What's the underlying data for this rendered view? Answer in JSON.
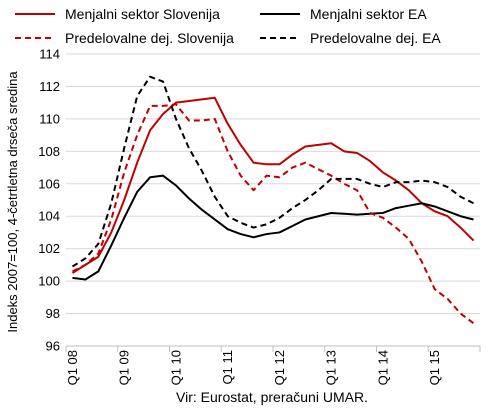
{
  "chart_data": {
    "type": "line",
    "ylabel": "Indeks 2007=100, 4-četrtletna drseča sredina",
    "source": "Vir: Eurostat, preračuni UMAR.",
    "ylim": [
      96,
      114
    ],
    "yticks": [
      "96",
      "98",
      "100",
      "102",
      "104",
      "106",
      "108",
      "110",
      "112",
      "114"
    ],
    "categories": [
      "Q1 08",
      "Q2 08",
      "Q3 08",
      "Q4 08",
      "Q1 09",
      "Q2 09",
      "Q3 09",
      "Q4 09",
      "Q1 10",
      "Q2 10",
      "Q3 10",
      "Q4 10",
      "Q1 11",
      "Q2 11",
      "Q3 11",
      "Q4 11",
      "Q1 12",
      "Q2 12",
      "Q3 12",
      "Q4 12",
      "Q1 13",
      "Q2 13",
      "Q3 13",
      "Q4 13",
      "Q1 14",
      "Q2 14",
      "Q3 14",
      "Q4 14",
      "Q1 15",
      "Q2 15",
      "Q3 15",
      "Q4 15"
    ],
    "xtick_labels": [
      "Q1 08",
      "Q1 09",
      "Q1 10",
      "Q1 11",
      "Q1 12",
      "Q1 13",
      "Q1 14",
      "Q1 15"
    ],
    "legend_placement": "top",
    "grid": "horizontal",
    "series": [
      {
        "name": "Menjalni sektor Slovenija",
        "color": "#c00000",
        "dash": "solid",
        "values": [
          100.5,
          101.0,
          101.5,
          103.0,
          105.0,
          107.3,
          109.3,
          110.3,
          111.0,
          111.1,
          111.2,
          111.3,
          109.7,
          108.4,
          107.3,
          107.2,
          107.2,
          107.8,
          108.3,
          108.4,
          108.5,
          108.0,
          107.9,
          107.4,
          106.7,
          106.2,
          105.6,
          104.8,
          104.3,
          104.0,
          103.3,
          102.5
        ]
      },
      {
        "name": "Menjalni sektor EA",
        "color": "#000000",
        "dash": "solid",
        "values": [
          100.2,
          100.1,
          100.6,
          102.2,
          103.9,
          105.5,
          106.4,
          106.5,
          105.9,
          105.1,
          104.4,
          103.8,
          103.2,
          102.9,
          102.7,
          102.9,
          103.0,
          103.4,
          103.8,
          104.0,
          104.2,
          104.15,
          104.1,
          104.15,
          104.2,
          104.5,
          104.65,
          104.8,
          104.6,
          104.3,
          104.0,
          103.8
        ]
      },
      {
        "name": "Predelovalne dej. Slovenija",
        "color": "#c00000",
        "dash": "dashed",
        "values": [
          100.6,
          101.0,
          101.7,
          103.8,
          106.7,
          109.0,
          110.8,
          110.8,
          110.9,
          109.9,
          109.9,
          110.0,
          108.0,
          106.5,
          105.6,
          106.5,
          106.4,
          107.0,
          107.3,
          106.9,
          106.5,
          106.0,
          105.6,
          104.2,
          103.9,
          103.3,
          102.6,
          101.2,
          99.5,
          98.9,
          98.0,
          97.4
        ]
      },
      {
        "name": "Predelovalne dej. EA",
        "color": "#000000",
        "dash": "dashed",
        "values": [
          100.9,
          101.4,
          102.3,
          104.8,
          108.2,
          111.4,
          112.6,
          112.3,
          110.0,
          108.2,
          106.8,
          105.2,
          104.0,
          103.6,
          103.3,
          103.5,
          103.9,
          104.5,
          105.0,
          105.6,
          106.3,
          106.3,
          106.3,
          106.0,
          105.8,
          106.1,
          106.1,
          106.2,
          106.1,
          105.8,
          105.2,
          104.8
        ]
      }
    ]
  }
}
